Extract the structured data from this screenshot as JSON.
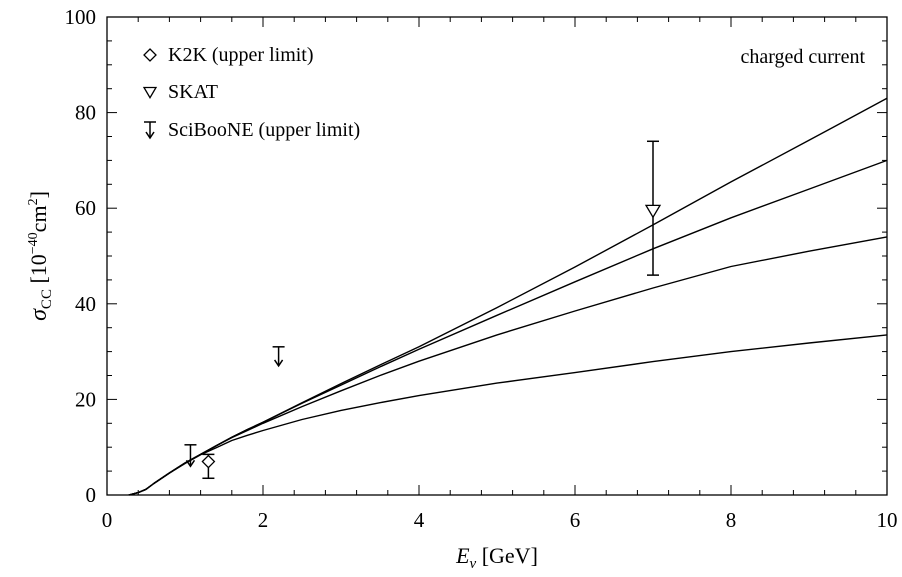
{
  "chart_data": {
    "type": "line",
    "title": "",
    "xlabel": {
      "symbol": "E",
      "subscript": "ν",
      "unit": " [GeV]"
    },
    "ylabel": {
      "symbol": "σ",
      "subscript": "CC",
      "unit_prefix": " [10",
      "exponent": "−40",
      "unit_mid": "cm",
      "unit_exp": "2",
      "unit_suffix": "]"
    },
    "xlim": [
      0,
      10
    ],
    "ylim": [
      0,
      100
    ],
    "xticks": [
      0,
      2,
      4,
      6,
      8,
      10
    ],
    "yticks": [
      0,
      20,
      40,
      60,
      80,
      100
    ],
    "grid": false,
    "annotation": "charged current",
    "legend": {
      "placement": "top-left",
      "entries": [
        {
          "marker": "diamond",
          "label": "K2K (upper limit)"
        },
        {
          "marker": "triangle-down",
          "label": "SKAT"
        },
        {
          "marker": "upper-limit-arrow",
          "label": "SciBooNE (upper limit)"
        }
      ]
    },
    "curves": [
      {
        "x": [
          0.28,
          0.4,
          0.5,
          0.6,
          0.8,
          1.0,
          1.2,
          1.4,
          1.6,
          1.8,
          2.0,
          2.5,
          3.0,
          3.5,
          4.0,
          5.0,
          6.0,
          7.0,
          8.0,
          9.0,
          10.0
        ],
        "y": [
          0.0,
          0.5,
          1.2,
          2.4,
          4.6,
          6.6,
          8.4,
          9.9,
          11.4,
          12.5,
          13.5,
          15.8,
          17.7,
          19.3,
          20.8,
          23.4,
          25.6,
          27.9,
          30.0,
          31.8,
          33.5
        ]
      },
      {
        "x": [
          0.28,
          0.4,
          0.5,
          0.6,
          0.8,
          1.0,
          1.2,
          1.4,
          1.6,
          1.8,
          2.0,
          2.5,
          3.0,
          3.5,
          4.0,
          5.0,
          6.0,
          7.0,
          8.0,
          9.0,
          10.0
        ],
        "y": [
          0.0,
          0.5,
          1.2,
          2.4,
          4.6,
          6.7,
          8.5,
          10.3,
          12.0,
          13.5,
          15.0,
          18.5,
          21.8,
          25.0,
          28.0,
          33.5,
          38.5,
          43.3,
          47.8,
          51.0,
          54.0
        ]
      },
      {
        "x": [
          0.28,
          0.4,
          0.5,
          0.6,
          0.8,
          1.0,
          1.2,
          1.4,
          1.6,
          1.8,
          2.0,
          2.5,
          3.0,
          3.5,
          4.0,
          5.0,
          6.0,
          7.0,
          8.0,
          9.0,
          10.0
        ],
        "y": [
          0.0,
          0.5,
          1.2,
          2.4,
          4.6,
          6.7,
          8.5,
          10.3,
          12.1,
          13.7,
          15.2,
          19.2,
          23.0,
          26.8,
          30.5,
          37.6,
          44.6,
          51.5,
          58.0,
          64.0,
          70.0
        ]
      },
      {
        "x": [
          0.28,
          0.4,
          0.5,
          0.6,
          0.8,
          1.0,
          1.2,
          1.4,
          1.6,
          1.8,
          2.0,
          2.5,
          3.0,
          3.5,
          4.0,
          5.0,
          6.0,
          7.0,
          8.0,
          9.0,
          10.0
        ],
        "y": [
          0.0,
          0.5,
          1.2,
          2.4,
          4.6,
          6.7,
          8.5,
          10.3,
          12.1,
          13.7,
          15.2,
          19.3,
          23.3,
          27.2,
          31.0,
          39.2,
          47.7,
          56.5,
          65.5,
          74.2,
          83.0
        ]
      }
    ],
    "points": [
      {
        "series": "K2K (upper limit)",
        "marker": "diamond",
        "x": 1.3,
        "y": 7.0,
        "yerr_low": 3.5,
        "yerr_high": 8.5
      },
      {
        "series": "SKAT",
        "marker": "triangle-down",
        "x": 7.0,
        "y": 59.5,
        "yerr_low": 46.0,
        "yerr_high": 74.0
      },
      {
        "series": "SciBooNE (upper limit)",
        "marker": "upper-limit-arrow",
        "x": 1.07,
        "y": 10.5,
        "y_arrow_end": 6.0
      },
      {
        "series": "SciBooNE (upper limit)",
        "marker": "upper-limit-arrow",
        "x": 2.2,
        "y": 31.0,
        "y_arrow_end": 27.0
      }
    ]
  }
}
